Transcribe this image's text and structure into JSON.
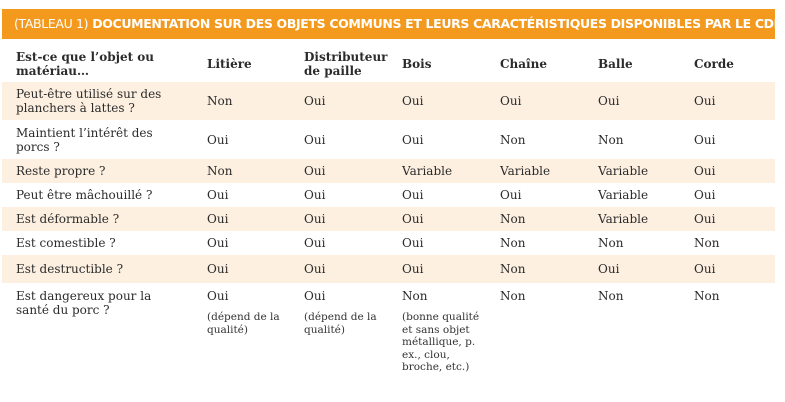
{
  "title": {
    "tag": "(TABLEAU 1)",
    "text": "DOCUMENTATION SUR DES OBJETS COMMUNS ET LEURS CARACTÉRISTIQUES DISPONIBLES PAR LE CDPQ"
  },
  "headers": [
    "Est-ce que l’objet ou matériau…",
    "Litière",
    "Distributeur de paille",
    "Bois",
    "Chaîne",
    "Balle",
    "Corde"
  ],
  "rows": [
    {
      "label": "Peut-être utilisé sur des planchers à lattes ?",
      "values": [
        "Non",
        "Oui",
        "Oui",
        "Oui",
        "Oui",
        "Oui"
      ]
    },
    {
      "label": "Maintient l’intérêt des porcs ?",
      "values": [
        "Oui",
        "Oui",
        "Oui",
        "Non",
        "Non",
        "Oui"
      ]
    },
    {
      "label": "Reste propre ?",
      "values": [
        "Non",
        "Oui",
        "Variable",
        "Variable",
        "Variable",
        "Oui"
      ]
    },
    {
      "label": "Peut être mâchouillé ?",
      "values": [
        "Oui",
        "Oui",
        "Oui",
        "Oui",
        "Variable",
        "Oui"
      ]
    },
    {
      "label": "Est déformable ?",
      "values": [
        "Oui",
        "Oui",
        "Oui",
        "Non",
        "Variable",
        "Oui"
      ]
    },
    {
      "label": "Est comestible ?",
      "values": [
        "Oui",
        "Oui",
        "Oui",
        "Non",
        "Non",
        "Non"
      ]
    },
    {
      "label": "Est destructible ?",
      "values": [
        "Oui",
        "Oui",
        "Oui",
        "Non",
        "Oui",
        "Oui"
      ]
    },
    {
      "label": "Est dangereux pour la santé du porc ?",
      "values": [
        "Oui",
        "Oui",
        "Non",
        "Non",
        "Non",
        "Non"
      ],
      "notes": [
        "(dépend de la qualité)",
        "(dépend de la qualité)",
        "(bonne qualité et sans objet métallique, p. ex., clou, broche, etc.)",
        "",
        "",
        ""
      ]
    }
  ],
  "colors": {
    "title_bar": "#f39a1e",
    "row_shade": "#fdf0e1"
  }
}
